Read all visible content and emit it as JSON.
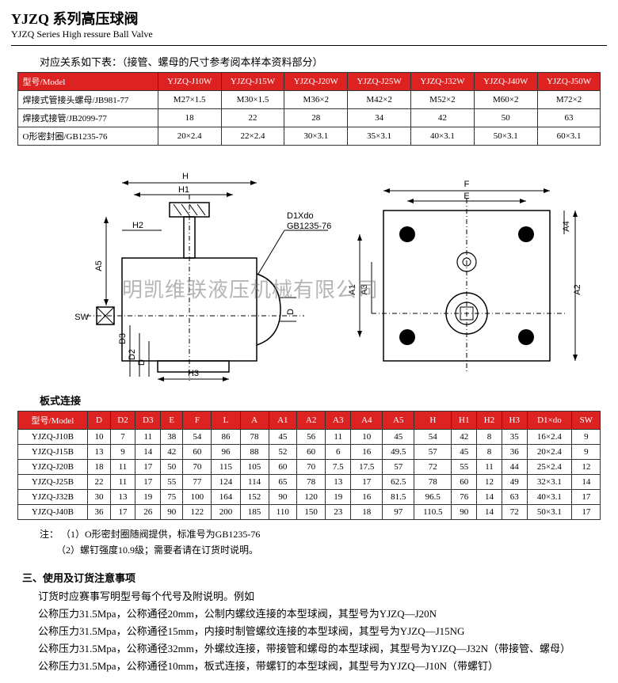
{
  "title": {
    "cn": "YJZQ 系列高压球阀",
    "en": "YJZQ Series High ressure Ball Valve"
  },
  "subhead1": "对应关系如下表：（接管、螺母的尺寸参考阅本样本资料部分）",
  "table1": {
    "header_label": "型号/Model",
    "columns": [
      "YJZQ-J10W",
      "YJZQ-J15W",
      "YJZQ-J20W",
      "YJZQ-J25W",
      "YJZQ-J32W",
      "YJZQ-J40W",
      "YJZQ-J50W"
    ],
    "rows": [
      {
        "label": "焊接式管接头螺母/JB981-77",
        "cells": [
          "M27×1.5",
          "M30×1.5",
          "M36×2",
          "M42×2",
          "M52×2",
          "M60×2",
          "M72×2"
        ]
      },
      {
        "label": "焊接式接管/JB2099-77",
        "cells": [
          "18",
          "22",
          "28",
          "34",
          "42",
          "50",
          "63"
        ]
      },
      {
        "label": "O形密封圈/GB1235-76",
        "cells": [
          "20×2.4",
          "22×2.4",
          "30×3.1",
          "35×3.1",
          "40×3.1",
          "50×3.1",
          "60×3.1"
        ]
      }
    ],
    "colors": {
      "header_bg": "#d22",
      "header_fg": "#ffffff",
      "border": "#333333",
      "row_bg": "#ffffff"
    }
  },
  "diagram": {
    "callout1": "D1Xdo",
    "callout2": "GB1235-76",
    "left_dims": [
      "H",
      "H1",
      "H2",
      "A5",
      "SW",
      "D3",
      "D2",
      "D",
      "H3"
    ],
    "right_dims": [
      "F",
      "E",
      "A3",
      "A4",
      "A1",
      "A2"
    ],
    "watermark": "明凯维联液压机械有限公司"
  },
  "subhead2": "板式连接",
  "table2": {
    "header_label": "型号/Model",
    "cols": [
      "D",
      "D2",
      "D3",
      "E",
      "F",
      "L",
      "A",
      "A1",
      "A2",
      "A3",
      "A4",
      "A5",
      "H",
      "H1",
      "H2",
      "H3",
      "D1×do",
      "SW"
    ],
    "rows": [
      {
        "k": "YJZQ-J10B",
        "v": [
          "10",
          "7",
          "11",
          "38",
          "54",
          "86",
          "78",
          "45",
          "56",
          "11",
          "10",
          "45",
          "54",
          "42",
          "8",
          "35",
          "16×2.4",
          "9"
        ]
      },
      {
        "k": "YJZQ-J15B",
        "v": [
          "13",
          "9",
          "14",
          "42",
          "60",
          "96",
          "88",
          "52",
          "60",
          "6",
          "16",
          "49.5",
          "57",
          "45",
          "8",
          "36",
          "20×2.4",
          "9"
        ]
      },
      {
        "k": "YJZQ-J20B",
        "v": [
          "18",
          "11",
          "17",
          "50",
          "70",
          "115",
          "105",
          "60",
          "70",
          "7.5",
          "17.5",
          "57",
          "72",
          "55",
          "11",
          "44",
          "25×2.4",
          "12"
        ]
      },
      {
        "k": "YJZQ-J25B",
        "v": [
          "22",
          "11",
          "17",
          "55",
          "77",
          "124",
          "114",
          "65",
          "78",
          "13",
          "17",
          "62.5",
          "78",
          "60",
          "12",
          "49",
          "32×3.1",
          "14"
        ]
      },
      {
        "k": "YJZQ-J32B",
        "v": [
          "30",
          "13",
          "19",
          "75",
          "100",
          "164",
          "152",
          "90",
          "120",
          "19",
          "16",
          "81.5",
          "96.5",
          "76",
          "14",
          "63",
          "40×3.1",
          "17"
        ]
      },
      {
        "k": "YJZQ-J40B",
        "v": [
          "36",
          "17",
          "26",
          "90",
          "122",
          "200",
          "185",
          "110",
          "150",
          "23",
          "18",
          "97",
          "110.5",
          "90",
          "14",
          "72",
          "50×3.1",
          "17"
        ]
      }
    ],
    "colors": {
      "header_bg": "#d22",
      "header_fg": "#ffffff",
      "border": "#333333"
    }
  },
  "notes": {
    "prefix": "注：",
    "l1": "（1）O形密封圈随阀提供，标准号为GB1235-76",
    "l2": "（2）螺钉强度10.9级；需要者请在订货时说明。"
  },
  "section3": {
    "title": "三、使用及订货注意事项",
    "lines": [
      "订货时应赛事写明型号每个代号及附说明。例如",
      "公称压力31.5Mpa，公称通径20mm，公制内螺纹连接的本型球阀，其型号为YJZQ—J20N",
      "公称压力31.5Mpa，公称通径15mm，内接时制管螺纹连接的本型球阀，其型号为YJZQ—J15NG",
      "公称压力31.5Mpa，公称通径32mm，外螺纹连接，带接管和螺母的本型球阀，其型号为YJZQ—J32N（带接管、螺母）",
      "公称压力31.5Mpa，公称通径10mm，板式连接，带螺钉的本型球阀，其型号为YJZQ—J10N（带螺钉）"
    ]
  }
}
